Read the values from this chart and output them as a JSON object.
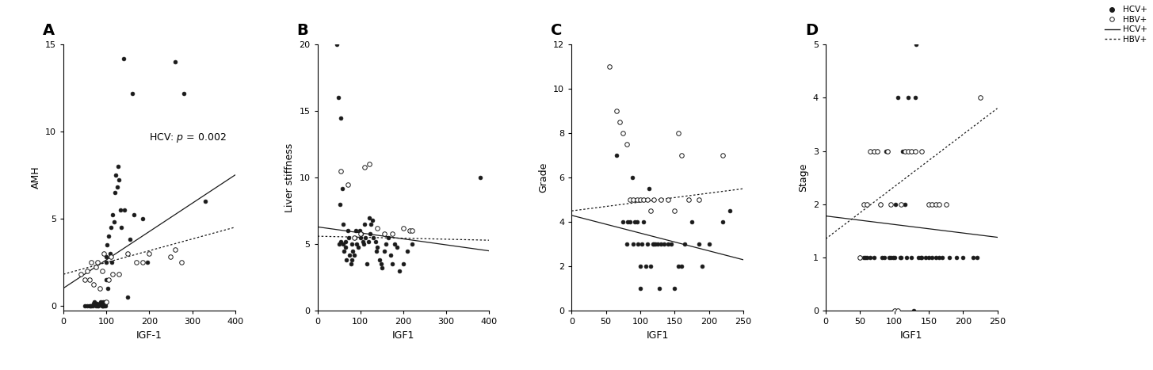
{
  "panel_A": {
    "label": "A",
    "xlabel": "IGF-1",
    "ylabel": "AMH",
    "xlim": [
      0,
      400
    ],
    "ylim": [
      -0.3,
      15
    ],
    "xticks": [
      0,
      100,
      200,
      300,
      400
    ],
    "yticks": [
      0,
      5,
      10,
      15
    ],
    "hcv_x": [
      50,
      55,
      60,
      62,
      65,
      68,
      70,
      72,
      75,
      78,
      80,
      82,
      85,
      87,
      88,
      90,
      90,
      92,
      93,
      95,
      95,
      97,
      98,
      98,
      100,
      100,
      100,
      102,
      103,
      105,
      108,
      110,
      112,
      115,
      118,
      120,
      122,
      125,
      128,
      130,
      132,
      135,
      140,
      143,
      150,
      155,
      160,
      165,
      185,
      195,
      260,
      280,
      330
    ],
    "hcv_y": [
      0.0,
      0.0,
      0.0,
      0.0,
      0.0,
      0.0,
      0.1,
      0.2,
      0.0,
      0.1,
      0.0,
      0.0,
      0.1,
      0.2,
      0.1,
      0.0,
      0.0,
      0.2,
      0.0,
      0.0,
      0.1,
      0.0,
      0.2,
      0.1,
      2.5,
      2.8,
      1.5,
      3.5,
      1.0,
      4.0,
      3.0,
      4.5,
      2.5,
      5.2,
      4.8,
      6.5,
      7.5,
      6.8,
      8.0,
      7.2,
      5.5,
      4.5,
      14.2,
      5.5,
      0.5,
      3.8,
      12.2,
      5.2,
      5.0,
      2.5,
      14.0,
      12.2,
      6.0
    ],
    "hbv_x": [
      40,
      50,
      55,
      60,
      65,
      70,
      75,
      80,
      85,
      90,
      95,
      100,
      105,
      110,
      115,
      130,
      150,
      170,
      185,
      200,
      250,
      260,
      275
    ],
    "hbv_y": [
      1.8,
      1.5,
      2.0,
      1.5,
      2.5,
      1.2,
      2.2,
      2.5,
      1.0,
      2.0,
      3.0,
      0.2,
      1.5,
      2.8,
      1.8,
      1.8,
      3.0,
      2.5,
      2.5,
      3.0,
      2.8,
      3.2,
      2.5
    ],
    "hcv_line_x": [
      0,
      400
    ],
    "hcv_line_y": [
      1.0,
      7.5
    ],
    "hbv_line_x": [
      0,
      400
    ],
    "hbv_line_y": [
      1.8,
      4.5
    ]
  },
  "panel_B": {
    "label": "B",
    "xlabel": "IGF1",
    "ylabel": "Liver stiffness",
    "xlim": [
      0,
      400
    ],
    "ylim": [
      0,
      20
    ],
    "xticks": [
      0,
      100,
      200,
      300,
      400
    ],
    "yticks": [
      0,
      5,
      10,
      15,
      20
    ],
    "hcv_x": [
      45,
      48,
      50,
      52,
      55,
      55,
      58,
      60,
      60,
      62,
      65,
      65,
      68,
      70,
      72,
      75,
      78,
      80,
      80,
      82,
      85,
      88,
      90,
      92,
      95,
      98,
      100,
      102,
      105,
      108,
      110,
      112,
      115,
      118,
      120,
      122,
      125,
      128,
      130,
      135,
      138,
      140,
      145,
      148,
      150,
      155,
      160,
      165,
      170,
      175,
      180,
      185,
      190,
      200,
      210,
      220,
      380
    ],
    "hcv_y": [
      20,
      16,
      5.0,
      8.0,
      5.2,
      14.5,
      9.2,
      6.5,
      5.0,
      4.5,
      5.2,
      4.8,
      3.8,
      6.0,
      5.5,
      4.2,
      3.5,
      3.8,
      5.0,
      4.5,
      4.2,
      5.5,
      6.0,
      5.0,
      4.8,
      6.0,
      5.5,
      5.8,
      5.2,
      5.0,
      6.5,
      5.5,
      3.5,
      5.2,
      7.0,
      5.8,
      6.5,
      6.8,
      5.5,
      5.2,
      4.5,
      4.8,
      3.8,
      3.5,
      3.2,
      4.5,
      5.0,
      5.5,
      4.2,
      3.5,
      5.0,
      4.8,
      3.0,
      3.5,
      4.5,
      5.0,
      10.0
    ],
    "hbv_x": [
      55,
      70,
      85,
      100,
      110,
      120,
      140,
      155,
      175,
      200,
      215,
      220
    ],
    "hbv_y": [
      10.5,
      9.5,
      5.5,
      5.8,
      10.8,
      11.0,
      6.2,
      5.8,
      5.8,
      6.2,
      6.0,
      6.0
    ],
    "hcv_line_x": [
      0,
      400
    ],
    "hcv_line_y": [
      6.3,
      4.5
    ],
    "hbv_line_x": [
      0,
      400
    ],
    "hbv_line_y": [
      5.6,
      5.3
    ]
  },
  "panel_C": {
    "label": "C",
    "xlabel": "IGF1",
    "ylabel": "Grade",
    "xlim": [
      0,
      250
    ],
    "ylim": [
      0,
      12
    ],
    "xticks": [
      0,
      50,
      100,
      150,
      200,
      250
    ],
    "yticks": [
      0,
      2,
      4,
      6,
      8,
      10,
      12
    ],
    "hcv_x": [
      65,
      75,
      80,
      82,
      85,
      88,
      90,
      92,
      95,
      97,
      100,
      100,
      102,
      105,
      108,
      110,
      113,
      115,
      118,
      120,
      122,
      125,
      128,
      130,
      135,
      140,
      145,
      150,
      155,
      160,
      165,
      175,
      185,
      190,
      200,
      220,
      230
    ],
    "hcv_y": [
      7.0,
      4.0,
      3.0,
      4.0,
      4.0,
      6.0,
      3.0,
      4.0,
      4.0,
      3.0,
      1.0,
      2.0,
      3.0,
      4.0,
      2.0,
      3.0,
      5.5,
      2.0,
      3.0,
      3.0,
      3.0,
      3.0,
      1.0,
      3.0,
      3.0,
      3.0,
      3.0,
      1.0,
      2.0,
      2.0,
      3.0,
      4.0,
      3.0,
      2.0,
      3.0,
      4.0,
      4.5
    ],
    "hbv_x": [
      55,
      65,
      70,
      75,
      80,
      85,
      90,
      95,
      100,
      105,
      110,
      115,
      120,
      130,
      140,
      150,
      155,
      160,
      170,
      185,
      220
    ],
    "hbv_y": [
      11.0,
      9.0,
      8.5,
      8.0,
      7.5,
      5.0,
      5.0,
      5.0,
      5.0,
      5.0,
      5.0,
      4.5,
      5.0,
      5.0,
      5.0,
      4.5,
      8.0,
      7.0,
      5.0,
      5.0,
      7.0
    ],
    "hcv_line_x": [
      0,
      250
    ],
    "hcv_line_y": [
      4.3,
      2.3
    ],
    "hbv_line_x": [
      0,
      250
    ],
    "hbv_line_y": [
      4.5,
      5.5
    ]
  },
  "panel_D": {
    "label": "D",
    "xlabel": "IGF1",
    "ylabel": "Stage",
    "xlim": [
      0,
      250
    ],
    "ylim": [
      0,
      5
    ],
    "xticks": [
      0,
      50,
      100,
      150,
      200,
      250
    ],
    "yticks": [
      0,
      1,
      2,
      3,
      4,
      5
    ],
    "hcv_x": [
      50,
      55,
      58,
      60,
      65,
      70,
      75,
      80,
      82,
      85,
      88,
      90,
      92,
      95,
      98,
      100,
      100,
      102,
      105,
      108,
      110,
      112,
      115,
      118,
      120,
      125,
      128,
      130,
      132,
      135,
      138,
      140,
      145,
      150,
      155,
      160,
      165,
      170,
      180,
      190,
      200,
      215,
      220
    ],
    "hcv_y": [
      1.0,
      1.0,
      1.0,
      1.0,
      1.0,
      1.0,
      3.0,
      2.0,
      1.0,
      1.0,
      3.0,
      3.0,
      1.0,
      1.0,
      1.0,
      1.0,
      0.0,
      2.0,
      4.0,
      1.0,
      1.0,
      3.0,
      2.0,
      1.0,
      4.0,
      1.0,
      0.0,
      4.0,
      5.0,
      1.0,
      1.0,
      1.0,
      1.0,
      1.0,
      1.0,
      1.0,
      1.0,
      1.0,
      1.0,
      1.0,
      1.0,
      1.0,
      1.0
    ],
    "hbv_x": [
      50,
      55,
      60,
      65,
      70,
      75,
      80,
      90,
      95,
      100,
      105,
      110,
      115,
      120,
      125,
      130,
      140,
      150,
      155,
      160,
      165,
      175,
      225
    ],
    "hbv_y": [
      1.0,
      2.0,
      2.0,
      3.0,
      3.0,
      3.0,
      2.0,
      3.0,
      2.0,
      0.0,
      0.0,
      2.0,
      3.0,
      3.0,
      3.0,
      3.0,
      3.0,
      2.0,
      2.0,
      2.0,
      2.0,
      2.0,
      4.0
    ],
    "hcv_line_x": [
      0,
      250
    ],
    "hcv_line_y": [
      1.78,
      1.38
    ],
    "hbv_line_x": [
      0,
      250
    ],
    "hbv_line_y": [
      1.35,
      3.8
    ]
  },
  "dot_color_filled": "#1a1a1a",
  "dot_color_open": "#1a1a1a",
  "dot_size": 12,
  "line_color": "#1a1a1a"
}
